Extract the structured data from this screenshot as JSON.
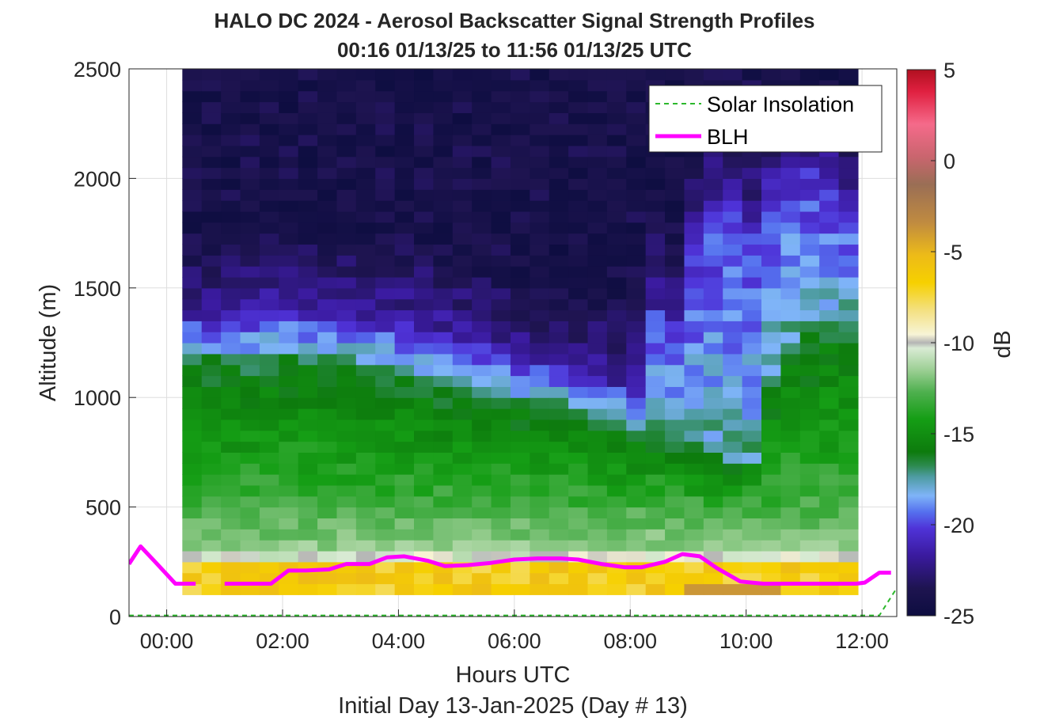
{
  "chart_data": {
    "type": "heatmap",
    "title": "HALO DC 2024 - Aerosol Backscatter Signal Strength Profiles",
    "subtitle": "00:16 01/13/25 to 11:56 01/13/25  UTC",
    "xlabel": "Hours UTC",
    "xlabel2": "Initial Day 13-Jan-2025 (Day # 13)",
    "ylabel": "Altitude (m)",
    "colorbar_label": "dB",
    "xlim_hours": [
      -0.65,
      12.6
    ],
    "ylim": [
      0,
      2500
    ],
    "clim": [
      -25,
      5
    ],
    "x_ticks": [
      {
        "value": 0,
        "label": "00:00"
      },
      {
        "value": 2,
        "label": "02:00"
      },
      {
        "value": 4,
        "label": "04:00"
      },
      {
        "value": 6,
        "label": "06:00"
      },
      {
        "value": 8,
        "label": "08:00"
      },
      {
        "value": 10,
        "label": "10:00"
      },
      {
        "value": 12,
        "label": "12:00"
      }
    ],
    "y_ticks": [
      {
        "value": 0,
        "label": "0"
      },
      {
        "value": 500,
        "label": "500"
      },
      {
        "value": 1000,
        "label": "1000"
      },
      {
        "value": 1500,
        "label": "1500"
      },
      {
        "value": 2000,
        "label": "2000"
      },
      {
        "value": 2500,
        "label": "2500"
      }
    ],
    "colorbar_ticks": [
      {
        "value": 5,
        "label": "5"
      },
      {
        "value": 0,
        "label": "0"
      },
      {
        "value": -5,
        "label": "-5"
      },
      {
        "value": -10,
        "label": "-10"
      },
      {
        "value": -15,
        "label": "-15"
      },
      {
        "value": -20,
        "label": "-20"
      },
      {
        "value": -25,
        "label": "-25"
      }
    ],
    "grid": true,
    "legend_position": "top-right",
    "legend": [
      {
        "name": "Solar Insolation",
        "color": "#2db82d",
        "style": "dashed"
      },
      {
        "name": "BLH",
        "color": "#ff00ff",
        "style": "solid"
      }
    ],
    "heatmap": {
      "x_start_hours": 0.27,
      "x_end_hours": 11.93,
      "n_cols": 35,
      "y_start_m": 100,
      "y_end_m": 2500,
      "n_rows": 48,
      "column_profiles_top_m": [
        {
          "blh": 160,
          "mid_top": 1200,
          "mid_type": "green"
        },
        {
          "blh": 160,
          "mid_top": 1200,
          "mid_type": "green"
        }
      ],
      "approx_boundaries": {
        "yellow_layer_top_m": [
          240,
          240,
          240,
          240,
          240,
          240,
          240,
          240,
          240,
          240,
          240,
          240,
          240,
          240,
          240,
          240,
          240,
          240,
          240,
          240,
          240,
          240,
          240,
          240,
          240,
          240,
          240,
          240,
          240,
          240,
          240,
          240,
          240,
          240,
          240
        ],
        "green_top_m": [
          1200,
          1180,
          1160,
          1150,
          1200,
          1190,
          1180,
          1180,
          1160,
          1160,
          1140,
          1120,
          1070,
          1060,
          1050,
          1030,
          1020,
          990,
          990,
          980,
          950,
          920,
          880,
          860,
          850,
          820,
          780,
          730,
          700,
          720,
          1100,
          1250,
          1300,
          1350,
          1330
        ],
        "blue_top_m": [
          1350,
          1360,
          1370,
          1380,
          1400,
          1390,
          1380,
          1370,
          1350,
          1330,
          1320,
          1330,
          1310,
          1280,
          1250,
          1230,
          1190,
          1150,
          1140,
          1130,
          1080,
          1060,
          1050,
          1040,
          1400,
          1350,
          1700,
          1900,
          1900,
          1800,
          1950,
          2050,
          2050,
          2000,
          1900
        ]
      }
    },
    "series": [
      {
        "name": "BLH",
        "x_hours": [
          -0.65,
          -0.45,
          -0.2,
          0.15,
          0.5,
          0.75,
          1.0,
          1.5,
          1.8,
          2.1,
          2.4,
          2.8,
          3.1,
          3.5,
          3.8,
          4.1,
          4.5,
          4.8,
          5.2,
          5.6,
          6.0,
          6.4,
          6.8,
          7.1,
          7.5,
          7.9,
          8.2,
          8.6,
          8.9,
          9.2,
          9.5,
          9.9,
          10.3,
          10.7,
          11.1,
          11.5,
          11.9,
          12.05,
          12.3,
          12.5
        ],
        "y_m": [
          240,
          320,
          250,
          150,
          150,
          null,
          150,
          150,
          150,
          210,
          210,
          215,
          240,
          240,
          270,
          275,
          255,
          230,
          235,
          245,
          260,
          265,
          265,
          260,
          240,
          225,
          225,
          250,
          285,
          275,
          220,
          160,
          150,
          150,
          150,
          150,
          150,
          155,
          200,
          200
        ]
      },
      {
        "name": "Solar Insolation",
        "x_hours": [
          -0.65,
          12.3,
          12.6
        ],
        "y_m": [
          5,
          5,
          130
        ]
      }
    ]
  }
}
